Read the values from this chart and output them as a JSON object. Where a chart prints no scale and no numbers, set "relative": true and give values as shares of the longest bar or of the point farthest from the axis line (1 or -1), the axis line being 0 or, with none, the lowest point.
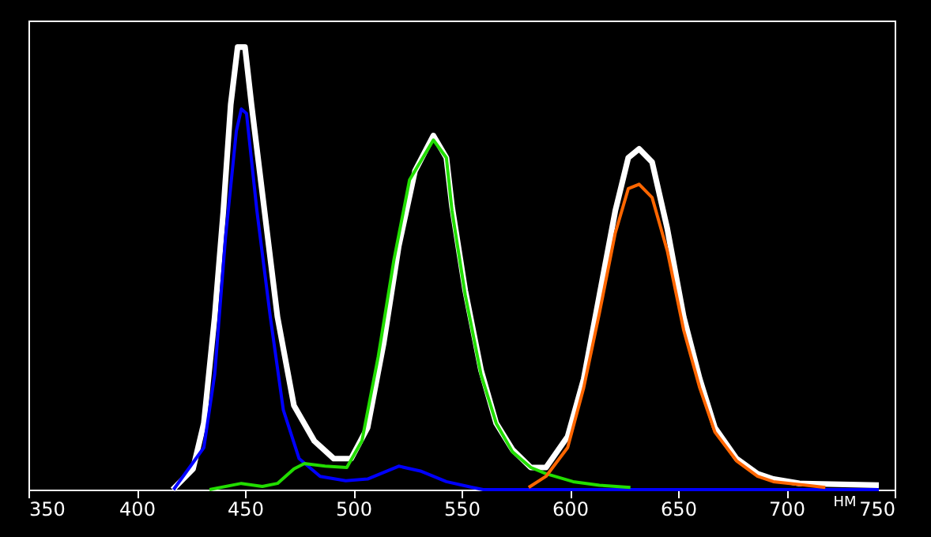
{
  "chart_data": {
    "type": "line",
    "relative": true,
    "xlabel": "HM",
    "xlim": [
      350,
      750
    ],
    "xticks": [
      350,
      400,
      450,
      500,
      550,
      600,
      650,
      700,
      750
    ],
    "tick_labels": "x",
    "grid": false,
    "legend": false,
    "series": [
      {
        "color": "#ffffff",
        "x": [
          416.6,
          426,
          431,
          436,
          440,
          443.4,
          446.6,
          450,
          453,
          459,
          465,
          472.6,
          482,
          491,
          499,
          506.6,
          514,
          521,
          528.5,
          537,
          543,
          545.6,
          551.7,
          559,
          566,
          573.6,
          582,
          589,
          599,
          606.4,
          613.7,
          621,
          627,
          632,
          638,
          645,
          652.6,
          660,
          667,
          677,
          686.7,
          694,
          706,
          742.7
        ],
        "values": [
          0,
          0.047,
          0.15,
          0.39,
          0.63,
          0.87,
          1.0,
          1.0,
          0.87,
          0.63,
          0.39,
          0.19,
          0.11,
          0.07,
          0.07,
          0.14,
          0.33,
          0.55,
          0.72,
          0.8,
          0.75,
          0.64,
          0.45,
          0.27,
          0.15,
          0.09,
          0.05,
          0.05,
          0.12,
          0.25,
          0.44,
          0.63,
          0.75,
          0.77,
          0.74,
          0.59,
          0.39,
          0.25,
          0.14,
          0.07,
          0.036,
          0.024,
          0.014,
          0.01
        ]
      },
      {
        "color": "#0000ff",
        "x": [
          417,
          431,
          436,
          441,
          446,
          448.3,
          450.7,
          455.5,
          461.7,
          467.7,
          475,
          484.7,
          496.5,
          506.6,
          521,
          531,
          543,
          555,
          560,
          742.7
        ],
        "values": [
          0,
          0.095,
          0.26,
          0.57,
          0.81,
          0.86,
          0.85,
          0.63,
          0.39,
          0.18,
          0.07,
          0.03,
          0.02,
          0.024,
          0.053,
          0.042,
          0.018,
          0.005,
          0,
          0
        ]
      },
      {
        "color": "#22dd00",
        "x": [
          433.6,
          448.3,
          458,
          465,
          472.6,
          477.4,
          487,
          497,
          504,
          511.5,
          518.8,
          526,
          537,
          543,
          545.6,
          551.7,
          559,
          566,
          573.6,
          582,
          589,
          601.5,
          613.7,
          628
        ],
        "values": [
          0,
          0.014,
          0.007,
          0.014,
          0.047,
          0.059,
          0.053,
          0.05,
          0.11,
          0.3,
          0.52,
          0.7,
          0.79,
          0.75,
          0.63,
          0.44,
          0.26,
          0.15,
          0.085,
          0.05,
          0.036,
          0.018,
          0.01,
          0.005
        ]
      },
      {
        "color": "#ff6600",
        "x": [
          581,
          589,
          599,
          606.4,
          613.7,
          621,
          627,
          632,
          638,
          645,
          652.6,
          660,
          667,
          677,
          686.7,
          694,
          718
        ],
        "values": [
          0.005,
          0.03,
          0.095,
          0.23,
          0.4,
          0.58,
          0.68,
          0.69,
          0.66,
          0.54,
          0.36,
          0.23,
          0.13,
          0.065,
          0.03,
          0.018,
          0.005
        ]
      }
    ]
  }
}
